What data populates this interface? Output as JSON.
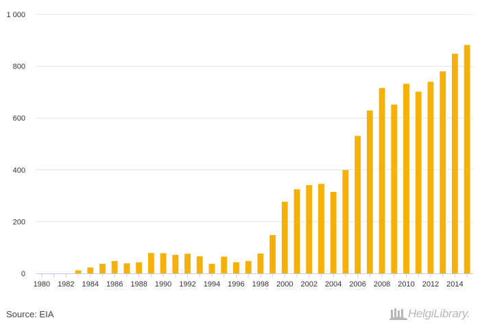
{
  "chart_data": {
    "type": "bar",
    "title": "",
    "xlabel": "",
    "ylabel": "",
    "ylim": [
      0,
      1000
    ],
    "yticks": [
      0,
      200,
      400,
      600,
      800,
      1000
    ],
    "ytick_labels": [
      "0",
      "200",
      "400",
      "600",
      "800",
      "1 000"
    ],
    "grid": true,
    "bar_color": "#f5b10a",
    "categories": [
      "1980",
      "1981",
      "1982",
      "1983",
      "1984",
      "1985",
      "1986",
      "1987",
      "1988",
      "1989",
      "1990",
      "1991",
      "1992",
      "1993",
      "1994",
      "1995",
      "1996",
      "1997",
      "1998",
      "1999",
      "2000",
      "2001",
      "2002",
      "2003",
      "2004",
      "2005",
      "2006",
      "2007",
      "2008",
      "2009",
      "2010",
      "2011",
      "2012",
      "2013",
      "2014",
      "2015"
    ],
    "xtick_labels": [
      "1980",
      "1982",
      "1984",
      "1986",
      "1988",
      "1990",
      "1992",
      "1994",
      "1996",
      "1998",
      "2000",
      "2002",
      "2004",
      "2006",
      "2008",
      "2010",
      "2012",
      "2014"
    ],
    "values": [
      0,
      0,
      0,
      12,
      23,
      37,
      48,
      39,
      43,
      79,
      78,
      72,
      76,
      66,
      37,
      65,
      43,
      48,
      77,
      148,
      277,
      325,
      341,
      346,
      315,
      399,
      531,
      629,
      716,
      652,
      732,
      702,
      740,
      780,
      848,
      882
    ]
  },
  "footer": {
    "source": "Source: EIA",
    "logo_text": "HelgiLibrary.",
    "logo_icon": "helgi-library-icon"
  }
}
